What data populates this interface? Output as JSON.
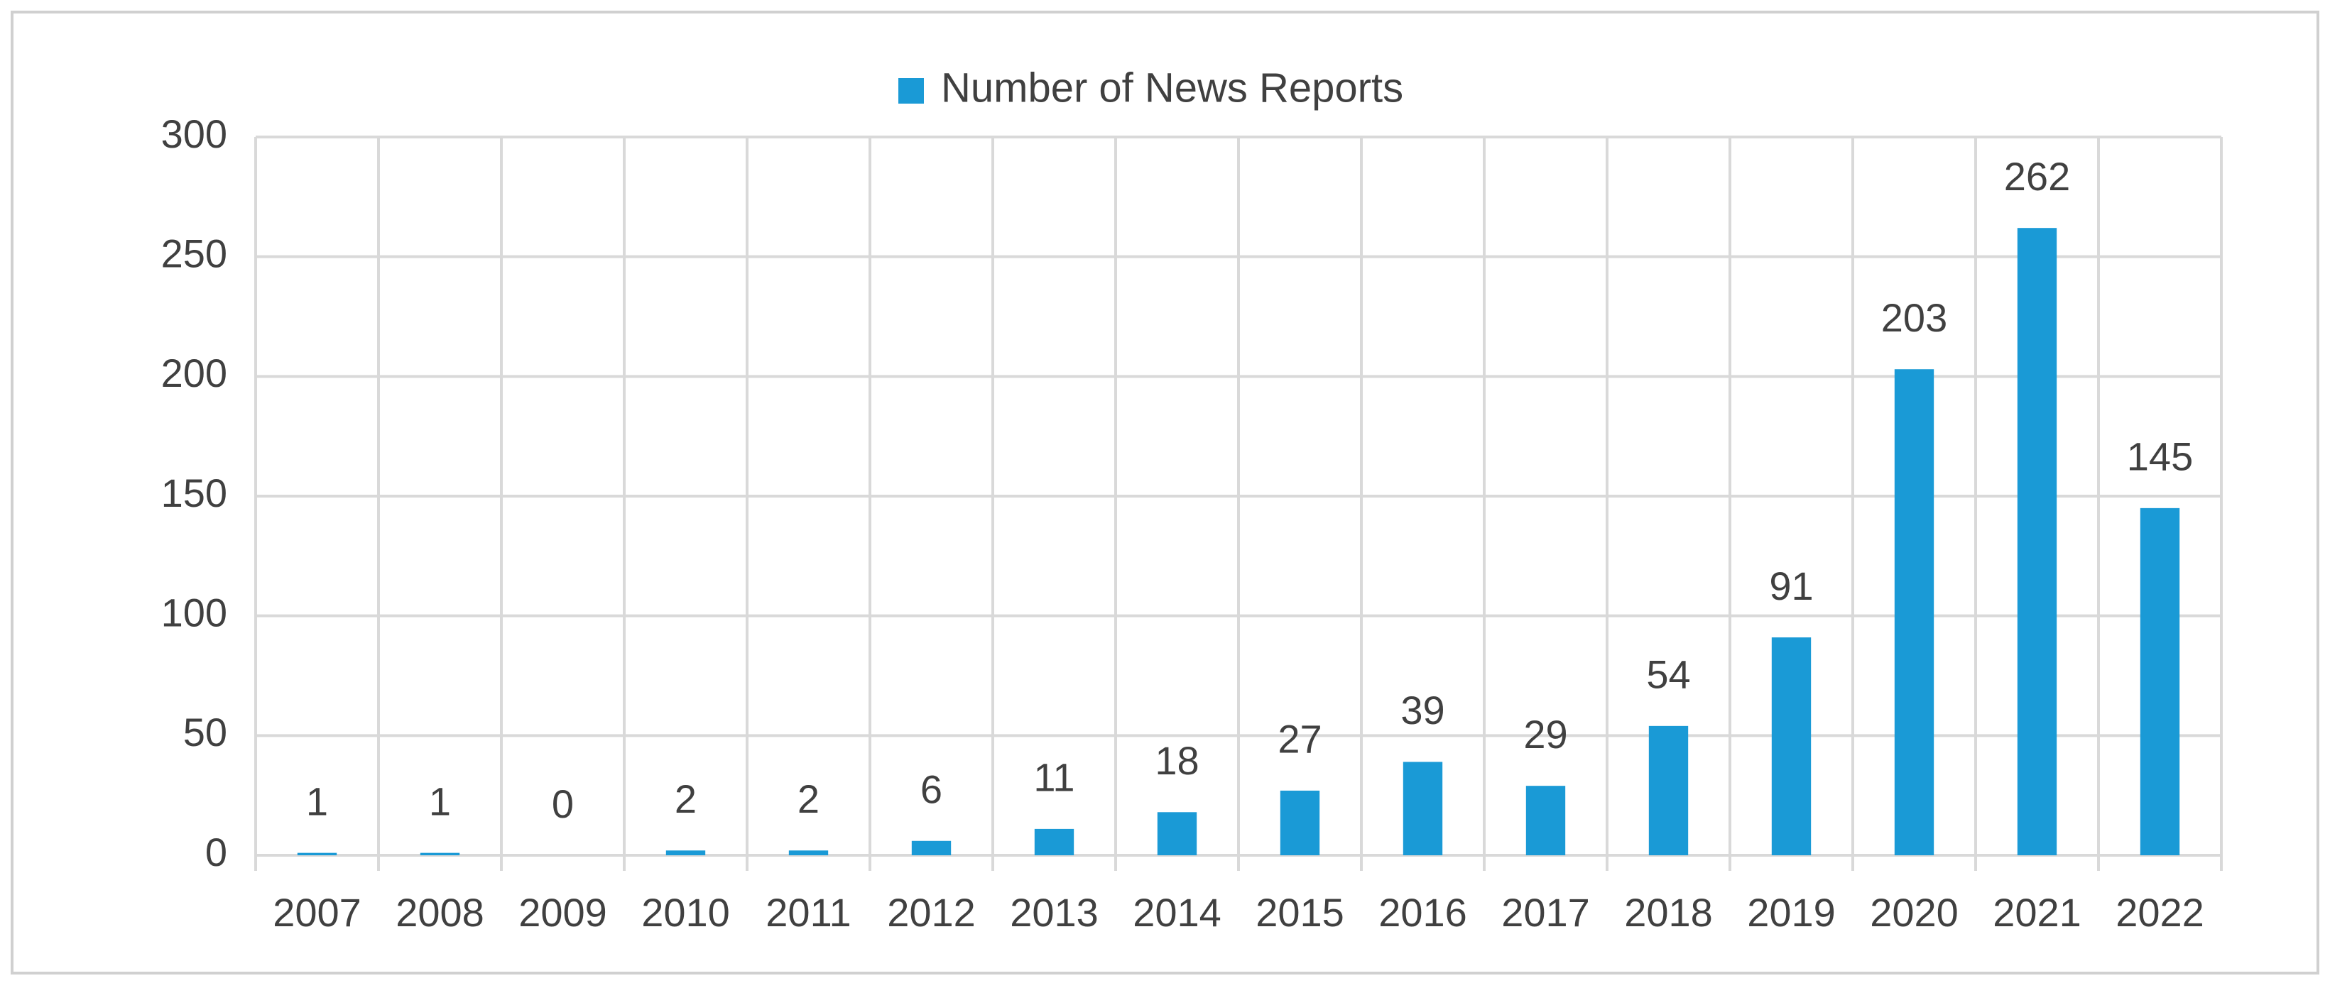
{
  "chart_data": {
    "type": "bar",
    "categories": [
      "2007",
      "2008",
      "2009",
      "2010",
      "2011",
      "2012",
      "2013",
      "2014",
      "2015",
      "2016",
      "2017",
      "2018",
      "2019",
      "2020",
      "2021",
      "2022"
    ],
    "series": [
      {
        "name": "Number of News Reports",
        "color": "#1a9ad6",
        "values": [
          1,
          1,
          0,
          2,
          2,
          6,
          11,
          18,
          27,
          39,
          29,
          54,
          91,
          203,
          262,
          145
        ]
      }
    ],
    "ylim": [
      0,
      300
    ],
    "yticks": [
      0,
      50,
      100,
      150,
      200,
      250,
      300
    ],
    "grid": true,
    "legend": "top",
    "data_labels": true
  }
}
